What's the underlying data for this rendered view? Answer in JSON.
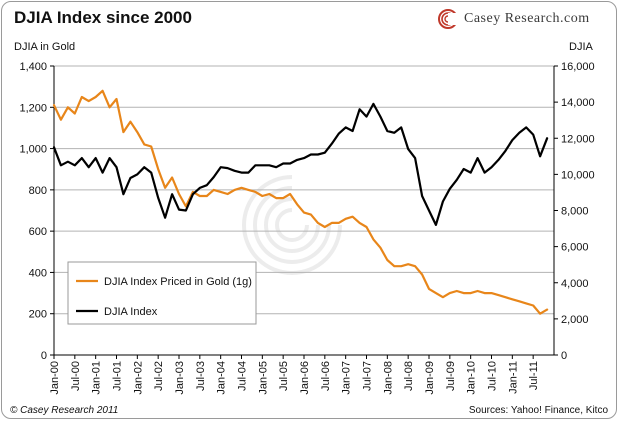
{
  "header": {
    "title": "DJIA Index since 2000",
    "brand": "Casey Research.com",
    "brand_icon": "casey-research-logo-icon"
  },
  "footer": {
    "copyright": "© Casey Research 2011",
    "sources": "Sources: Yahoo! Finance, Kitco"
  },
  "colors": {
    "gold_series": "#e8861a",
    "djia_series": "#000000",
    "grid": "#b3b3b3"
  },
  "chart_data": {
    "type": "line",
    "title": "DJIA Index since 2000",
    "ylabel_left": "DJIA in Gold",
    "ylabel_right": "DJIA",
    "ylim_left": [
      0,
      1400
    ],
    "ylim_right": [
      0,
      16000
    ],
    "yticks_left": [
      "0",
      "200",
      "400",
      "600",
      "800",
      "1,000",
      "1,200",
      "1,400"
    ],
    "yticks_right": [
      "0",
      "2,000",
      "4,000",
      "6,000",
      "8,000",
      "10,000",
      "12,000",
      "14,000",
      "16,000"
    ],
    "xtick_labels": [
      "Jan-00",
      "Jul-00",
      "Jan-01",
      "Jul-01",
      "Jan-02",
      "Jul-02",
      "Jan-03",
      "Jul-03",
      "Jan-04",
      "Jul-04",
      "Jan-05",
      "Jul-05",
      "Jan-06",
      "Jul-06",
      "Jan-07",
      "Jul-07",
      "Jan-08",
      "Jul-08",
      "Jan-09",
      "Jul-09",
      "Jan-10",
      "Jul-10",
      "Jan-11",
      "Jul-11"
    ],
    "grid": "horizontal",
    "legend_position": "bottom-left",
    "series": [
      {
        "name": "DJIA Index Priced in Gold (1g)",
        "axis": "left",
        "x": [
          "2000-01",
          "2000-03",
          "2000-05",
          "2000-07",
          "2000-09",
          "2000-11",
          "2001-01",
          "2001-03",
          "2001-05",
          "2001-07",
          "2001-09",
          "2001-11",
          "2002-01",
          "2002-03",
          "2002-05",
          "2002-07",
          "2002-09",
          "2002-11",
          "2003-01",
          "2003-03",
          "2003-05",
          "2003-07",
          "2003-09",
          "2003-11",
          "2004-01",
          "2004-03",
          "2004-05",
          "2004-07",
          "2004-09",
          "2004-11",
          "2005-01",
          "2005-03",
          "2005-05",
          "2005-07",
          "2005-09",
          "2005-11",
          "2006-01",
          "2006-03",
          "2006-05",
          "2006-07",
          "2006-09",
          "2006-11",
          "2007-01",
          "2007-03",
          "2007-05",
          "2007-07",
          "2007-09",
          "2007-11",
          "2008-01",
          "2008-03",
          "2008-05",
          "2008-07",
          "2008-09",
          "2008-11",
          "2009-01",
          "2009-03",
          "2009-05",
          "2009-07",
          "2009-09",
          "2009-11",
          "2010-01",
          "2010-03",
          "2010-05",
          "2010-07",
          "2010-09",
          "2010-11",
          "2011-01",
          "2011-03",
          "2011-05",
          "2011-07",
          "2011-09",
          "2011-11"
        ],
        "values": [
          1210,
          1140,
          1200,
          1170,
          1250,
          1230,
          1250,
          1280,
          1200,
          1240,
          1080,
          1130,
          1080,
          1020,
          1010,
          900,
          810,
          860,
          780,
          720,
          790,
          770,
          770,
          800,
          790,
          780,
          800,
          810,
          800,
          790,
          770,
          780,
          760,
          760,
          780,
          730,
          690,
          680,
          640,
          620,
          640,
          640,
          660,
          670,
          640,
          620,
          560,
          520,
          460,
          430,
          430,
          440,
          430,
          390,
          320,
          300,
          280,
          300,
          310,
          300,
          300,
          310,
          300,
          300,
          290,
          280,
          270,
          260,
          250,
          240,
          200,
          220
        ]
      },
      {
        "name": "DJIA Index",
        "axis": "right",
        "x": [
          "2000-01",
          "2000-03",
          "2000-05",
          "2000-07",
          "2000-09",
          "2000-11",
          "2001-01",
          "2001-03",
          "2001-05",
          "2001-07",
          "2001-09",
          "2001-11",
          "2002-01",
          "2002-03",
          "2002-05",
          "2002-07",
          "2002-09",
          "2002-11",
          "2003-01",
          "2003-03",
          "2003-05",
          "2003-07",
          "2003-09",
          "2003-11",
          "2004-01",
          "2004-03",
          "2004-05",
          "2004-07",
          "2004-09",
          "2004-11",
          "2005-01",
          "2005-03",
          "2005-05",
          "2005-07",
          "2005-09",
          "2005-11",
          "2006-01",
          "2006-03",
          "2006-05",
          "2006-07",
          "2006-09",
          "2006-11",
          "2007-01",
          "2007-03",
          "2007-05",
          "2007-07",
          "2007-09",
          "2007-11",
          "2008-01",
          "2008-03",
          "2008-05",
          "2008-07",
          "2008-09",
          "2008-11",
          "2009-01",
          "2009-03",
          "2009-05",
          "2009-07",
          "2009-09",
          "2009-11",
          "2010-01",
          "2010-03",
          "2010-05",
          "2010-07",
          "2010-09",
          "2010-11",
          "2011-01",
          "2011-03",
          "2011-05",
          "2011-07",
          "2011-09",
          "2011-11"
        ],
        "values": [
          11500,
          10500,
          10700,
          10500,
          10900,
          10400,
          10900,
          10100,
          10900,
          10400,
          8900,
          9800,
          10000,
          10400,
          10100,
          8700,
          7600,
          8900,
          8050,
          8000,
          8900,
          9250,
          9400,
          9850,
          10400,
          10350,
          10200,
          10100,
          10100,
          10500,
          10500,
          10500,
          10400,
          10600,
          10600,
          10800,
          10900,
          11100,
          11100,
          11200,
          11700,
          12250,
          12600,
          12400,
          13600,
          13200,
          13900,
          13200,
          12400,
          12300,
          12600,
          11400,
          10900,
          8800,
          8000,
          7200,
          8500,
          9200,
          9700,
          10300,
          10100,
          10900,
          10100,
          10400,
          10800,
          11300,
          11900,
          12300,
          12600,
          12200,
          11000,
          12000
        ]
      }
    ]
  }
}
